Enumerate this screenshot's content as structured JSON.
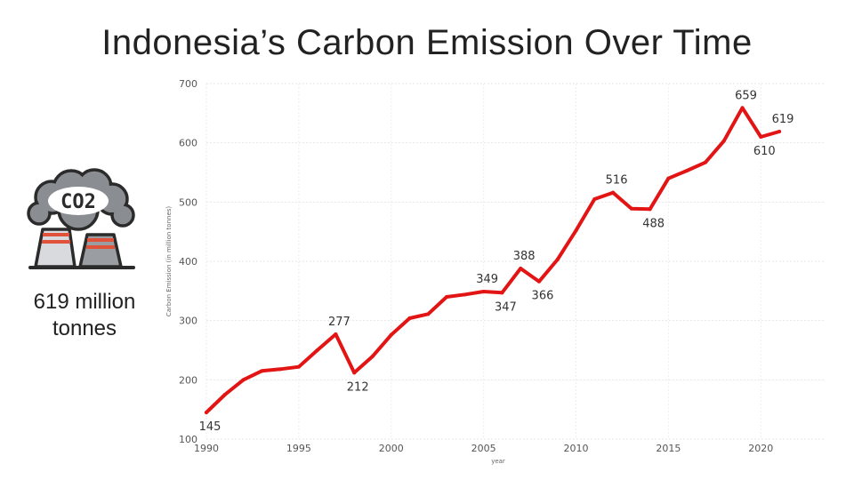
{
  "title": "Indonesia’s Carbon Emission Over Time",
  "kpi": {
    "line1": "619 million",
    "line2": "tonnes"
  },
  "icon": {
    "name": "co2-factory-icon",
    "text": "CO2"
  },
  "colors": {
    "line": "#e31414",
    "text": "#222222"
  },
  "chart_data": {
    "type": "line",
    "xlabel": "year",
    "ylabel": "Carbon Emission (in million tonnes)",
    "xlim": [
      1990,
      2023.5
    ],
    "ylim": [
      100,
      700
    ],
    "xticks": [
      1990,
      1995,
      2000,
      2005,
      2010,
      2015,
      2020
    ],
    "yticks": [
      100,
      200,
      300,
      400,
      500,
      600,
      700
    ],
    "grid": true,
    "series": [
      {
        "x": [
          1990,
          1991,
          1992,
          1993,
          1994,
          1995,
          1996,
          1997,
          1998,
          1999,
          2000,
          2001,
          2002,
          2003,
          2004,
          2005,
          2006,
          2007,
          2008,
          2009,
          2010,
          2011,
          2012,
          2013,
          2014,
          2015,
          2016,
          2017,
          2018,
          2019,
          2020,
          2021
        ],
        "values": [
          145,
          175,
          200,
          215,
          218,
          222,
          250,
          277,
          212,
          240,
          276,
          304,
          311,
          340,
          344,
          349,
          347,
          388,
          366,
          403,
          452,
          505,
          516,
          489,
          488,
          540,
          553,
          567,
          603,
          659,
          610,
          619
        ]
      }
    ],
    "annotations": [
      {
        "x": 1990,
        "y": 145,
        "label": "145",
        "pos": "below"
      },
      {
        "x": 1997,
        "y": 277,
        "label": "277",
        "pos": "above"
      },
      {
        "x": 1998,
        "y": 212,
        "label": "212",
        "pos": "below"
      },
      {
        "x": 2005,
        "y": 349,
        "label": "349",
        "pos": "above"
      },
      {
        "x": 2006,
        "y": 347,
        "label": "347",
        "pos": "below"
      },
      {
        "x": 2007,
        "y": 388,
        "label": "388",
        "pos": "above"
      },
      {
        "x": 2008,
        "y": 366,
        "label": "366",
        "pos": "below"
      },
      {
        "x": 2012,
        "y": 516,
        "label": "516",
        "pos": "above"
      },
      {
        "x": 2014,
        "y": 488,
        "label": "488",
        "pos": "below"
      },
      {
        "x": 2019,
        "y": 659,
        "label": "659",
        "pos": "above"
      },
      {
        "x": 2020,
        "y": 610,
        "label": "610",
        "pos": "below"
      },
      {
        "x": 2021,
        "y": 619,
        "label": "619",
        "pos": "above"
      }
    ]
  }
}
